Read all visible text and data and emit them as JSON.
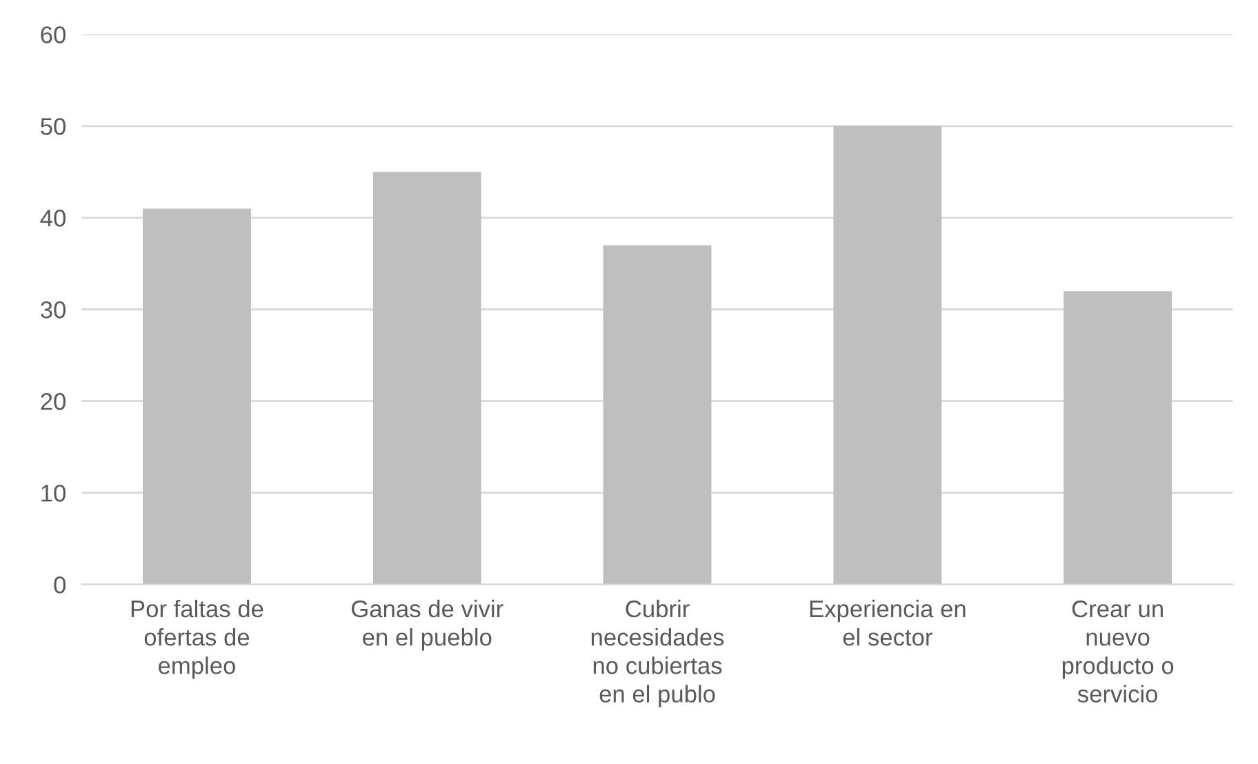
{
  "chart_data": {
    "type": "bar",
    "categories": [
      "Por faltas de ofertas de empleo",
      "Ganas de vivir en el pueblo",
      "Cubrir necesidades no cubiertas en el publo",
      "Experiencia en el sector",
      "Crear un nuevo producto o servicio"
    ],
    "values": [
      41,
      45,
      37,
      50,
      32
    ],
    "color": "#bfbfbf",
    "ylim": [
      0,
      60
    ],
    "yticks": [
      0,
      10,
      20,
      30,
      40,
      50,
      60
    ],
    "grid": "y"
  }
}
